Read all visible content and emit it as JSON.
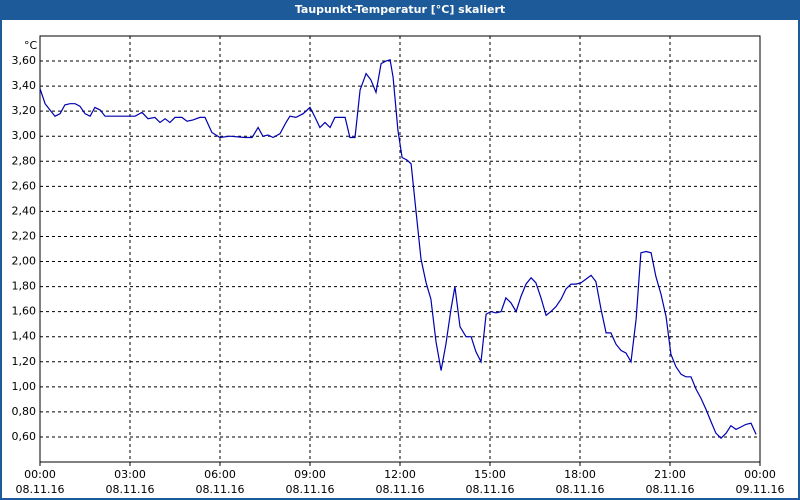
{
  "chart_data": {
    "type": "line",
    "title": "Taupunkt-Temperatur [°C] skaliert",
    "y_unit": "°C",
    "color": "#0000b0",
    "grid": true,
    "xlim": [
      0,
      24
    ],
    "xticks": [
      {
        "value": 0,
        "label": "00:00",
        "date": "08.11.16"
      },
      {
        "value": 3,
        "label": "03:00",
        "date": "08.11.16"
      },
      {
        "value": 6,
        "label": "06:00",
        "date": "08.11.16"
      },
      {
        "value": 9,
        "label": "09:00",
        "date": "08.11.16"
      },
      {
        "value": 12,
        "label": "12:00",
        "date": "08.11.16"
      },
      {
        "value": 15,
        "label": "15:00",
        "date": "08.11.16"
      },
      {
        "value": 18,
        "label": "18:00",
        "date": "08.11.16"
      },
      {
        "value": 21,
        "label": "21:00",
        "date": "08.11.16"
      },
      {
        "value": 24,
        "label": "00:00",
        "date": "09.11.16"
      }
    ],
    "ylim": [
      0.4,
      3.8
    ],
    "yticks": [
      {
        "value": 0.6,
        "label": "0,60"
      },
      {
        "value": 0.8,
        "label": "0,80"
      },
      {
        "value": 1.0,
        "label": "1,00"
      },
      {
        "value": 1.2,
        "label": "1,20"
      },
      {
        "value": 1.4,
        "label": "1,40"
      },
      {
        "value": 1.6,
        "label": "1,60"
      },
      {
        "value": 1.8,
        "label": "1,80"
      },
      {
        "value": 2.0,
        "label": "2,00"
      },
      {
        "value": 2.2,
        "label": "2,20"
      },
      {
        "value": 2.4,
        "label": "2,40"
      },
      {
        "value": 2.6,
        "label": "2,60"
      },
      {
        "value": 2.8,
        "label": "2,80"
      },
      {
        "value": 3.0,
        "label": "3,00"
      },
      {
        "value": 3.2,
        "label": "3,20"
      },
      {
        "value": 3.4,
        "label": "3,40"
      },
      {
        "value": 3.6,
        "label": "3,60"
      }
    ],
    "x": [
      0,
      0.17,
      0.33,
      0.5,
      0.67,
      0.83,
      1,
      1.17,
      1.33,
      1.5,
      1.67,
      1.83,
      2,
      2.17,
      2.5,
      2.83,
      3.17,
      3.4,
      3.6,
      3.83,
      4,
      4.17,
      4.33,
      4.5,
      4.73,
      4.9,
      5.1,
      5.33,
      5.5,
      5.73,
      6,
      6.33,
      6.83,
      7.07,
      7.27,
      7.43,
      7.6,
      7.77,
      8,
      8.2,
      8.33,
      8.53,
      8.77,
      9,
      9.17,
      9.33,
      9.5,
      9.67,
      9.83,
      10,
      10.17,
      10.33,
      10.5,
      10.67,
      10.87,
      11.03,
      11.2,
      11.37,
      11.53,
      11.67,
      11.77,
      11.93,
      12.07,
      12.23,
      12.37,
      12.53,
      12.7,
      12.87,
      13.03,
      13.2,
      13.37,
      13.53,
      13.7,
      13.83,
      14,
      14.2,
      14.37,
      14.53,
      14.7,
      14.87,
      15.03,
      15.2,
      15.37,
      15.53,
      15.7,
      15.87,
      16.03,
      16.2,
      16.37,
      16.53,
      16.7,
      16.87,
      17.03,
      17.2,
      17.37,
      17.53,
      17.7,
      17.87,
      18.03,
      18.2,
      18.37,
      18.53,
      18.7,
      18.87,
      19.03,
      19.2,
      19.37,
      19.53,
      19.7,
      19.87,
      20.03,
      20.2,
      20.37,
      20.53,
      20.7,
      20.87,
      21.03,
      21.2,
      21.37,
      21.53,
      21.7,
      21.87,
      22.03,
      22.2,
      22.37,
      22.53,
      22.7,
      22.87,
      23.03,
      23.2,
      23.37,
      23.53,
      23.7,
      23.87
    ],
    "values": [
      3.38,
      3.26,
      3.21,
      3.16,
      3.18,
      3.25,
      3.26,
      3.26,
      3.24,
      3.18,
      3.16,
      3.23,
      3.21,
      3.16,
      3.16,
      3.16,
      3.16,
      3.19,
      3.14,
      3.15,
      3.11,
      3.14,
      3.11,
      3.15,
      3.15,
      3.12,
      3.13,
      3.15,
      3.15,
      3.03,
      2.99,
      3.0,
      2.99,
      2.99,
      3.07,
      3.0,
      3.01,
      2.99,
      3.02,
      3.11,
      3.16,
      3.15,
      3.18,
      3.23,
      3.15,
      3.07,
      3.11,
      3.07,
      3.15,
      3.15,
      3.15,
      2.99,
      2.99,
      3.37,
      3.5,
      3.45,
      3.35,
      3.58,
      3.6,
      3.61,
      3.47,
      3.05,
      2.83,
      2.81,
      2.78,
      2.41,
      2.02,
      1.83,
      1.7,
      1.36,
      1.13,
      1.34,
      1.62,
      1.8,
      1.48,
      1.4,
      1.4,
      1.28,
      1.2,
      1.58,
      1.6,
      1.59,
      1.6,
      1.71,
      1.67,
      1.6,
      1.72,
      1.82,
      1.87,
      1.83,
      1.71,
      1.57,
      1.6,
      1.64,
      1.7,
      1.78,
      1.82,
      1.82,
      1.83,
      1.86,
      1.89,
      1.84,
      1.62,
      1.43,
      1.43,
      1.34,
      1.29,
      1.27,
      1.2,
      1.54,
      2.07,
      2.08,
      2.07,
      1.88,
      1.74,
      1.56,
      1.26,
      1.16,
      1.1,
      1.08,
      1.08,
      0.98,
      0.91,
      0.82,
      0.72,
      0.63,
      0.59,
      0.63,
      0.69,
      0.66,
      0.68,
      0.7,
      0.71,
      0.62
    ]
  }
}
